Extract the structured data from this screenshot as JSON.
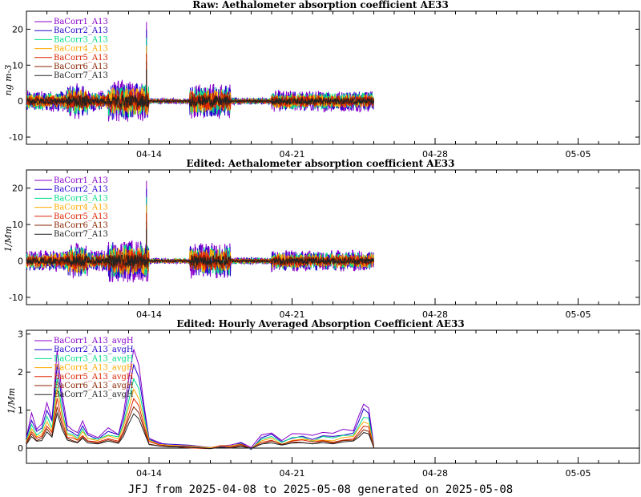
{
  "footer": "JFJ from 2025-04-08 to 2025-05-08 generated on 2025-05-08",
  "colors": [
    "#8800cc",
    "#2200cc",
    "#00dd88",
    "#ffaa00",
    "#dd2200",
    "#882200",
    "#222222"
  ],
  "chart_data": [
    {
      "type": "line",
      "title": "Raw: Aethalometer absorption coefficient AE33",
      "ylabel": "ng m-3",
      "xlim": [
        "2025-04-08",
        "2025-05-08"
      ],
      "ylim": [
        -12,
        25
      ],
      "yticks": [
        -10,
        0,
        10,
        20
      ],
      "xticks": [
        "04-14",
        "04-21",
        "04-28",
        "05-05"
      ],
      "data_end": "2025-04-25",
      "legend": [
        "BaCorr1_A13",
        "BaCorr2_A13",
        "BaCorr3_A13",
        "BaCorr4_A13",
        "BaCorr5_A13",
        "BaCorr6_A13",
        "BaCorr7_A13"
      ],
      "spike": {
        "x": "2025-04-13T21:00",
        "y": 22
      },
      "noise": [
        {
          "from": "2025-04-08",
          "to": "2025-04-10",
          "amp": 3
        },
        {
          "from": "2025-04-10",
          "to": "2025-04-11",
          "amp": 5
        },
        {
          "from": "2025-04-11",
          "to": "2025-04-12",
          "amp": 3
        },
        {
          "from": "2025-04-12",
          "to": "2025-04-14",
          "amp": 6
        },
        {
          "from": "2025-04-14",
          "to": "2025-04-16",
          "amp": 0.8
        },
        {
          "from": "2025-04-16",
          "to": "2025-04-18",
          "amp": 5
        },
        {
          "from": "2025-04-18",
          "to": "2025-04-20",
          "amp": 1
        },
        {
          "from": "2025-04-20",
          "to": "2025-04-25",
          "amp": 3
        }
      ]
    },
    {
      "type": "line",
      "title": "Edited: Aethalometer absorption coefficient AE33",
      "ylabel": "1/Mm",
      "xlim": [
        "2025-04-08",
        "2025-05-08"
      ],
      "ylim": [
        -12,
        25
      ],
      "yticks": [
        -10,
        0,
        10,
        20
      ],
      "xticks": [
        "04-14",
        "04-21",
        "04-28",
        "05-05"
      ],
      "data_end": "2025-04-25",
      "legend": [
        "BaCorr1_A13",
        "BaCorr2_A13",
        "BaCorr3_A13",
        "BaCorr4_A13",
        "BaCorr5_A13",
        "BaCorr6_A13",
        "BaCorr7_A13"
      ],
      "spike": {
        "x": "2025-04-13T21:00",
        "y": 22
      },
      "noise": [
        {
          "from": "2025-04-08",
          "to": "2025-04-10",
          "amp": 3
        },
        {
          "from": "2025-04-10",
          "to": "2025-04-11",
          "amp": 5
        },
        {
          "from": "2025-04-11",
          "to": "2025-04-12",
          "amp": 3
        },
        {
          "from": "2025-04-12",
          "to": "2025-04-14",
          "amp": 6
        },
        {
          "from": "2025-04-14",
          "to": "2025-04-16",
          "amp": 0.8
        },
        {
          "from": "2025-04-16",
          "to": "2025-04-18",
          "amp": 5
        },
        {
          "from": "2025-04-18",
          "to": "2025-04-20",
          "amp": 1
        },
        {
          "from": "2025-04-20",
          "to": "2025-04-25",
          "amp": 3
        }
      ]
    },
    {
      "type": "line",
      "title": "Edited: Hourly Averaged Absorption Coefficient AE33",
      "ylabel": "1/Mm",
      "xlim": [
        "2025-04-08",
        "2025-05-08"
      ],
      "ylim": [
        -0.4,
        3.1
      ],
      "yticks": [
        0,
        1,
        2,
        3
      ],
      "xticks": [
        "04-14",
        "04-21",
        "04-28",
        "05-05"
      ],
      "data_end": "2025-04-25",
      "legend": [
        "BaCorr1_A13_avgH",
        "BaCorr2_A13_avgH",
        "BaCorr3_A13_avgH",
        "BaCorr4_A13_avgH",
        "BaCorr5_A13_avgH",
        "BaCorr6_A13_avgH",
        "BaCorr7_A13_avgH"
      ],
      "scales": [
        1.0,
        0.85,
        0.7,
        0.6,
        0.5,
        0.42,
        0.35
      ],
      "series_profile": {
        "x": [
          "2025-04-08T00:00",
          "2025-04-08T06:00",
          "2025-04-08T12:00",
          "2025-04-08T18:00",
          "2025-04-09T00:00",
          "2025-04-09T06:00",
          "2025-04-09T12:00",
          "2025-04-09T18:00",
          "2025-04-10T00:00",
          "2025-04-10T06:00",
          "2025-04-10T12:00",
          "2025-04-10T18:00",
          "2025-04-11T00:00",
          "2025-04-11T12:00",
          "2025-04-12T00:00",
          "2025-04-12T12:00",
          "2025-04-12T18:00",
          "2025-04-13T00:00",
          "2025-04-13T06:00",
          "2025-04-13T12:00",
          "2025-04-13T18:00",
          "2025-04-14T00:00",
          "2025-04-14T12:00",
          "2025-04-15T00:00",
          "2025-04-16T00:00",
          "2025-04-17T00:00",
          "2025-04-17T12:00",
          "2025-04-18T00:00",
          "2025-04-18T12:00",
          "2025-04-19T00:00",
          "2025-04-19T12:00",
          "2025-04-20T00:00",
          "2025-04-20T12:00",
          "2025-04-21T00:00",
          "2025-04-21T12:00",
          "2025-04-22T00:00",
          "2025-04-22T12:00",
          "2025-04-23T00:00",
          "2025-04-23T12:00",
          "2025-04-24T00:00",
          "2025-04-24T06:00",
          "2025-04-24T12:00",
          "2025-04-24T18:00",
          "2025-04-25T00:00"
        ],
        "y": [
          0.3,
          0.9,
          0.5,
          0.6,
          1.2,
          0.8,
          2.6,
          1.4,
          0.6,
          0.5,
          0.4,
          0.7,
          0.4,
          0.3,
          0.5,
          0.4,
          0.9,
          1.8,
          2.6,
          2.2,
          1.2,
          0.3,
          0.15,
          0.1,
          0.05,
          0.0,
          0.1,
          0.05,
          0.15,
          0.0,
          0.3,
          0.4,
          0.2,
          0.35,
          0.4,
          0.3,
          0.4,
          0.35,
          0.45,
          0.5,
          0.8,
          1.2,
          1.1,
          0.05
        ]
      }
    }
  ]
}
